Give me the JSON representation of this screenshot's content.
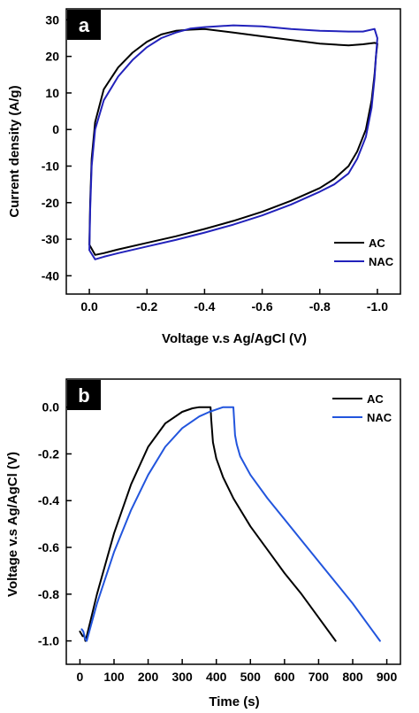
{
  "chart_data": [
    {
      "type": "line",
      "panel_label": "a",
      "xlabel": "Voltage v.s Ag/AgCl (V)",
      "ylabel": "Current density (A/g)",
      "xlim": [
        0.08,
        -1.08
      ],
      "ylim": [
        -45,
        33
      ],
      "xticks": [
        0.0,
        -0.2,
        -0.4,
        -0.6,
        -0.8,
        -1.0
      ],
      "xtick_labels": [
        "0.0",
        "-0.2",
        "-0.4",
        "-0.6",
        "-0.8",
        "-1.0"
      ],
      "yticks": [
        30,
        20,
        10,
        0,
        -10,
        -20,
        -30,
        -40
      ],
      "ytick_labels": [
        "30",
        "20",
        "10",
        "0",
        "-10",
        "-20",
        "-30",
        "-40"
      ],
      "legend_position": "lower-right",
      "colors": {
        "AC": "#000000",
        "NAC": "#2222bb"
      },
      "series": [
        {
          "name": "AC",
          "x": [
            0.0,
            -0.003,
            -0.008,
            -0.02,
            -0.05,
            -0.1,
            -0.15,
            -0.2,
            -0.25,
            -0.3,
            -0.35,
            -0.4,
            -0.5,
            -0.6,
            -0.7,
            -0.8,
            -0.9,
            -0.95,
            -0.99,
            -1.0,
            -0.995,
            -0.99,
            -0.98,
            -0.96,
            -0.93,
            -0.9,
            -0.85,
            -0.8,
            -0.7,
            -0.6,
            -0.5,
            -0.4,
            -0.3,
            -0.2,
            -0.1,
            -0.05,
            -0.02,
            0.0
          ],
          "y": [
            -31.5,
            -20,
            -8,
            2,
            11,
            17,
            21,
            24,
            26,
            27,
            27.3,
            27.5,
            26.5,
            25.5,
            24.5,
            23.5,
            23,
            23.3,
            23.7,
            23.5,
            20,
            15,
            8,
            0,
            -6,
            -10,
            -13.5,
            -16,
            -19.5,
            -22.5,
            -25,
            -27.2,
            -29.2,
            -31,
            -32.8,
            -33.8,
            -34.3,
            -31.5
          ]
        },
        {
          "name": "NAC",
          "x": [
            0.0,
            -0.003,
            -0.008,
            -0.02,
            -0.05,
            -0.1,
            -0.15,
            -0.2,
            -0.25,
            -0.3,
            -0.35,
            -0.4,
            -0.5,
            -0.6,
            -0.7,
            -0.8,
            -0.9,
            -0.95,
            -0.99,
            -1.0,
            -0.995,
            -0.99,
            -0.98,
            -0.96,
            -0.93,
            -0.9,
            -0.85,
            -0.8,
            -0.7,
            -0.6,
            -0.5,
            -0.4,
            -0.3,
            -0.2,
            -0.1,
            -0.05,
            -0.02,
            0.0
          ],
          "y": [
            -33,
            -22,
            -10,
            0,
            8,
            14.5,
            19,
            22.5,
            25,
            26.5,
            27.6,
            28,
            28.5,
            28.2,
            27.5,
            27,
            26.8,
            26.8,
            27.5,
            25,
            20,
            14,
            6,
            -2,
            -8,
            -12,
            -15,
            -17,
            -20.5,
            -23.5,
            -26,
            -28.2,
            -30.2,
            -32,
            -33.8,
            -34.8,
            -35.5,
            -33
          ]
        }
      ]
    },
    {
      "type": "line",
      "panel_label": "b",
      "xlabel": "Time (s)",
      "ylabel": "Voltage v.s Ag/AgCl (V)",
      "xlim": [
        -40,
        940
      ],
      "ylim": [
        -1.1,
        0.12
      ],
      "xticks": [
        0,
        100,
        200,
        300,
        400,
        500,
        600,
        700,
        800,
        900
      ],
      "xtick_labels": [
        "0",
        "100",
        "200",
        "300",
        "400",
        "500",
        "600",
        "700",
        "800",
        "900"
      ],
      "yticks": [
        0.0,
        -0.2,
        -0.4,
        -0.6,
        -0.8,
        -1.0
      ],
      "ytick_labels": [
        "0.0",
        "-0.2",
        "-0.4",
        "-0.6",
        "-0.8",
        "-1.0"
      ],
      "legend_position": "top-right",
      "colors": {
        "AC": "#000000",
        "NAC": "#2255dd"
      },
      "series": [
        {
          "name": "AC",
          "x": [
            0,
            8,
            12,
            16,
            20,
            50,
            100,
            150,
            200,
            250,
            300,
            330,
            350,
            370,
            380,
            383,
            385,
            390,
            400,
            420,
            450,
            500,
            550,
            600,
            650,
            700,
            750
          ],
          "y": [
            -0.96,
            -0.98,
            -0.975,
            -1.0,
            -0.98,
            -0.8,
            -0.54,
            -0.33,
            -0.17,
            -0.07,
            -0.02,
            -0.005,
            0.0,
            0.0,
            0.0,
            0.0,
            -0.05,
            -0.15,
            -0.22,
            -0.3,
            -0.39,
            -0.51,
            -0.61,
            -0.71,
            -0.8,
            -0.9,
            -1.0
          ]
        },
        {
          "name": "NAC",
          "x": [
            5,
            10,
            15,
            20,
            50,
            100,
            150,
            200,
            250,
            300,
            350,
            380,
            400,
            420,
            440,
            450,
            452,
            455,
            460,
            470,
            500,
            550,
            600,
            650,
            700,
            750,
            800,
            850,
            880
          ],
          "y": [
            -0.95,
            -0.96,
            -0.99,
            -1.0,
            -0.84,
            -0.62,
            -0.44,
            -0.29,
            -0.17,
            -0.09,
            -0.04,
            -0.02,
            -0.01,
            0.0,
            0.0,
            0.0,
            -0.05,
            -0.12,
            -0.16,
            -0.21,
            -0.29,
            -0.39,
            -0.48,
            -0.57,
            -0.66,
            -0.75,
            -0.84,
            -0.94,
            -1.0
          ]
        }
      ]
    }
  ]
}
